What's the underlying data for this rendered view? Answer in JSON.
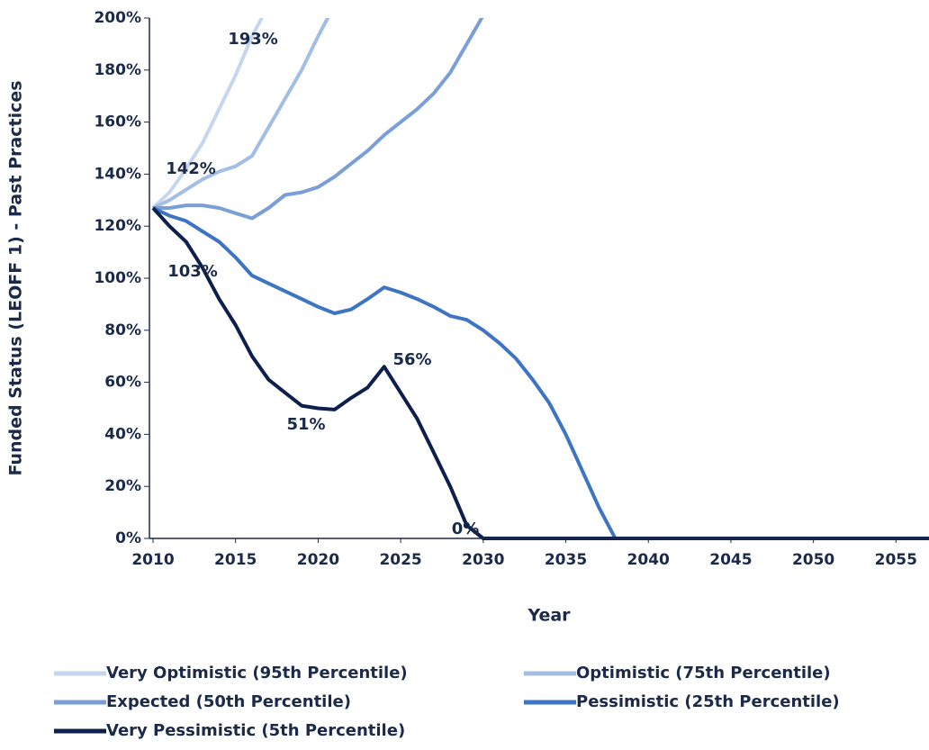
{
  "chart_data": {
    "type": "line",
    "x_label": "Year",
    "y_label": "Funded Status (LEOFF 1) - Past Practices",
    "x": [
      2010,
      2011,
      2012,
      2013,
      2014,
      2015,
      2016,
      2017,
      2018,
      2019,
      2020,
      2021,
      2022,
      2023,
      2024,
      2025,
      2026,
      2027,
      2028,
      2029,
      2030,
      2031,
      2032,
      2033,
      2034,
      2035,
      2036,
      2037,
      2038,
      2057
    ],
    "xlim": [
      2010,
      2057
    ],
    "xticks": [
      2010,
      2015,
      2020,
      2025,
      2030,
      2035,
      2040,
      2045,
      2050,
      2055
    ],
    "ylim": [
      0,
      200
    ],
    "yticks": [
      {
        "value": 0,
        "label": "0%"
      },
      {
        "value": 20,
        "label": "20%"
      },
      {
        "value": 40,
        "label": "40%"
      },
      {
        "value": 60,
        "label": "60%"
      },
      {
        "value": 80,
        "label": "80%"
      },
      {
        "value": 100,
        "label": "100%"
      },
      {
        "value": 120,
        "label": "120%"
      },
      {
        "value": 140,
        "label": "140%"
      },
      {
        "value": 160,
        "label": "160%"
      },
      {
        "value": 180,
        "label": "180%"
      },
      {
        "value": 200,
        "label": "200%"
      }
    ],
    "grid": false,
    "legend": "bottom",
    "series": [
      {
        "name": "Very Optimistic (95th Percentile)",
        "color": "#c6d6ee",
        "values": [
          127,
          133,
          142,
          152,
          165,
          178,
          193,
          205,
          null,
          null,
          null,
          null,
          null,
          null,
          null,
          null,
          null,
          null,
          null,
          null,
          null,
          null,
          null,
          null,
          null,
          null,
          null,
          null,
          null,
          null
        ]
      },
      {
        "name": "Optimistic (75th Percentile)",
        "color": "#a4bde4",
        "values": [
          127,
          130,
          134,
          138,
          141,
          143,
          147,
          158,
          169,
          180,
          193,
          205,
          null,
          null,
          null,
          null,
          null,
          null,
          null,
          null,
          null,
          null,
          null,
          null,
          null,
          null,
          null,
          null,
          null,
          null
        ]
      },
      {
        "name": "Expected (50th Percentile)",
        "color": "#7a9ed6",
        "values": [
          127,
          127,
          128,
          128,
          127,
          125,
          123,
          127,
          132,
          133,
          135,
          139,
          144,
          149,
          155,
          160,
          165,
          171,
          179,
          190,
          201,
          null,
          null,
          null,
          null,
          null,
          null,
          null,
          null,
          null
        ]
      },
      {
        "name": "Pessimistic (25th Percentile)",
        "color": "#3d74c4",
        "values": [
          127,
          124,
          122,
          118,
          114,
          108,
          101,
          98,
          95,
          92,
          89,
          86.5,
          88,
          92,
          96.5,
          94.5,
          92,
          89,
          85.5,
          84,
          80,
          75,
          69,
          61,
          52,
          40,
          26,
          12,
          0,
          0
        ]
      },
      {
        "name": "Very Pessimistic (5th Percentile)",
        "color": "#0d1f4d",
        "values": [
          127,
          120,
          114,
          104,
          92,
          82,
          70,
          61,
          56,
          51,
          50,
          49.5,
          54,
          58,
          66,
          56,
          46,
          33,
          20,
          5,
          0,
          0,
          0,
          0,
          0,
          0,
          0,
          0,
          0,
          0
        ]
      }
    ],
    "annotations": [
      "193%",
      "142%",
      "103%",
      "56%",
      "51%",
      "0%"
    ]
  }
}
